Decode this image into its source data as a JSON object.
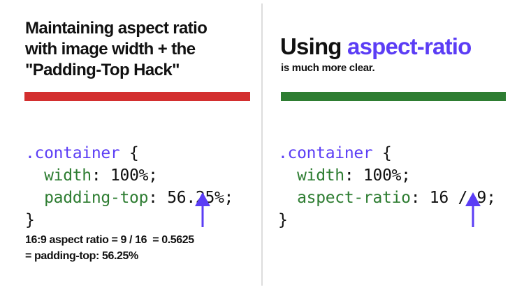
{
  "colors": {
    "accent": "#5b3df5",
    "left_bar": "#d32f2f",
    "right_bar": "#2e7d32",
    "property": "#2e7d32"
  },
  "left": {
    "title_lines": [
      "Maintaining aspect ratio",
      "with image width + the",
      "\"Padding-Top Hack\""
    ],
    "code": {
      "selector": ".container",
      "open": " {",
      "lines": [
        {
          "prop": "width",
          "value": "100%;"
        },
        {
          "prop": "padding-top",
          "value": "56.25%;"
        }
      ],
      "close": "}"
    },
    "note_lines": [
      "16:9 aspect ratio = 9 / 16  = 0.5625",
      "= padding-top: 56.25%"
    ],
    "arrow_icon": "arrow-up"
  },
  "right": {
    "title_prefix": "Using ",
    "title_highlight": "aspect-ratio",
    "subtitle": "is much more clear.",
    "code": {
      "selector": ".container",
      "open": " {",
      "lines": [
        {
          "prop": "width",
          "value": "100%;"
        },
        {
          "prop": "aspect-ratio",
          "value": "16 / 9;"
        }
      ],
      "close": "}"
    },
    "arrow_icon": "arrow-up"
  }
}
